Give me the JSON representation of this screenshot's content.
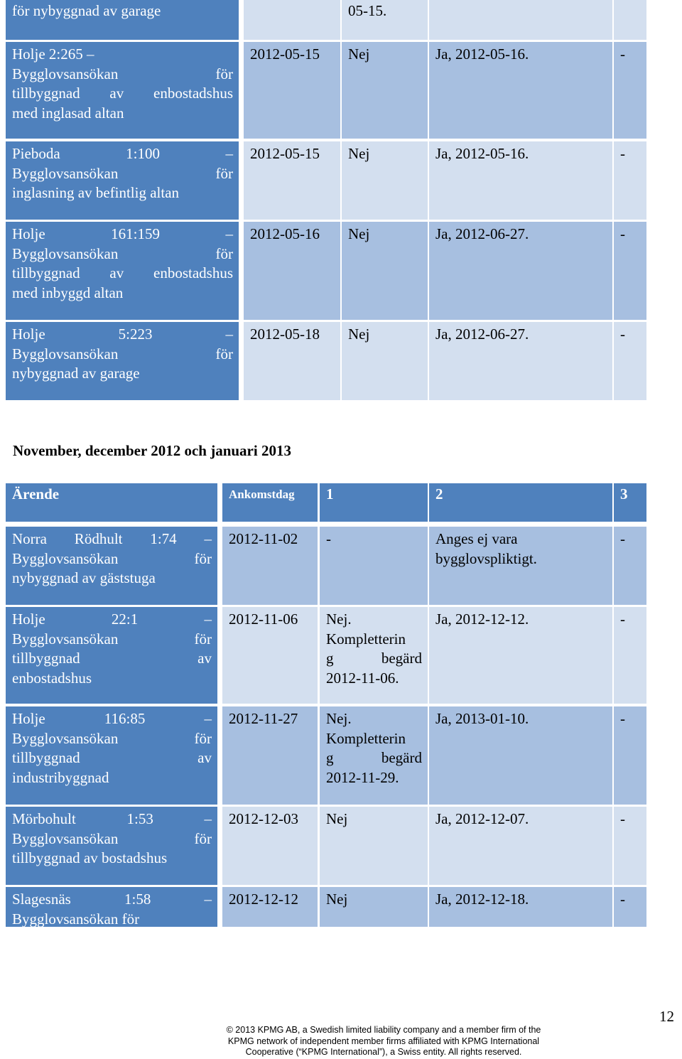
{
  "table1": {
    "rows": [
      {
        "c1_lines": [
          "för nybyggnad av garage"
        ],
        "c2": "",
        "c3": "05-15.",
        "c4": "",
        "c5": ""
      },
      {
        "c1_lines": [
          "Holje 2:265 –",
          "Bygglovsansökan för",
          "tillbyggnad av enbostadshus",
          "med inglasad altan"
        ],
        "c2": "2012-05-15",
        "c3": "Nej",
        "c4": "Ja, 2012-05-16.",
        "c5": "-"
      },
      {
        "c1_lines": [
          "Pieboda 1:100 –",
          "Bygglovsansökan för",
          "inglasning av befintlig altan"
        ],
        "c2": "2012-05-15",
        "c3": "Nej",
        "c4": "Ja, 2012-05-16.",
        "c5": "-"
      },
      {
        "c1_lines": [
          "Holje 161:159 –",
          "Bygglovsansökan för",
          "tillbyggnad av enbostadshus",
          "med inbyggd altan"
        ],
        "c2": "2012-05-16",
        "c3": "Nej",
        "c4": "Ja, 2012-06-27.",
        "c5": "-"
      },
      {
        "c1_lines": [
          "Holje 5:223 –",
          "Bygglovsansökan för",
          "nybyggnad av garage"
        ],
        "c2": "2012-05-18",
        "c3": "Nej",
        "c4": "Ja, 2012-06-27.",
        "c5": "-"
      }
    ]
  },
  "section_heading": "November, december 2012 och januari 2013",
  "table2": {
    "headers": [
      "Ärende",
      "Ankomstdag",
      "1",
      "2",
      "3"
    ],
    "rows": [
      {
        "c1_lines": [
          "Norra Rödhult 1:74 –",
          "Bygglovsansökan för",
          "nybyggnad av gäststuga"
        ],
        "c2": "2012-11-02",
        "c3_lines": [
          "-"
        ],
        "c4_lines": [
          "Anges ej vara",
          "bygglovspliktigt."
        ],
        "c5": "-"
      },
      {
        "c1_lines": [
          "Holje 22:1 –",
          "Bygglovsansökan för",
          "tillbyggnad av",
          "enbostadshus"
        ],
        "c2": "2012-11-06",
        "c3_lines": [
          "Nej.",
          "Kompletterin",
          "g begärd",
          "2012-11-06."
        ],
        "c4_lines": [
          "Ja, 2012-12-12."
        ],
        "c5": "-"
      },
      {
        "c1_lines": [
          "Holje 116:85 –",
          "Bygglovsansökan för",
          "tillbyggnad av",
          "industribyggnad"
        ],
        "c2": "2012-11-27",
        "c3_lines": [
          "Nej.",
          "Kompletterin",
          "g begärd",
          "2012-11-29."
        ],
        "c4_lines": [
          "Ja, 2013-01-10."
        ],
        "c5": "-"
      },
      {
        "c1_lines": [
          "Mörbohult 1:53 –",
          "Bygglovsansökan för",
          "tillbyggnad av bostadshus"
        ],
        "c2": "2012-12-03",
        "c3_lines": [
          "Nej"
        ],
        "c4_lines": [
          "Ja, 2012-12-07."
        ],
        "c5": "-"
      },
      {
        "c1_lines": [
          "Slagesnäs 1:58 –",
          "Bygglovsansökan för"
        ],
        "c2": "2012-12-12",
        "c3_lines": [
          "Nej"
        ],
        "c4_lines": [
          "Ja, 2012-12-18."
        ],
        "c5": "-"
      }
    ]
  },
  "footer": {
    "lines": [
      "© 2013 KPMG AB, a Swedish limited liability company and a member firm of the",
      "KPMG network of independent member firms affiliated with KPMG International",
      "Cooperative (“KPMG International”), a Swiss entity. All rights reserved."
    ]
  },
  "page_number": "12"
}
